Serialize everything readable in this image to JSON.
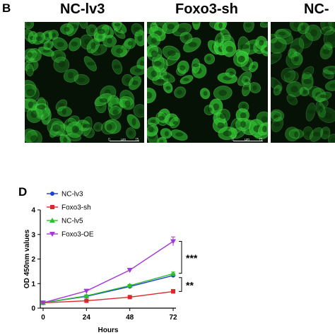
{
  "figure": {
    "panel_b_label": "B",
    "panel_d_label": "D",
    "micrographs": [
      {
        "label": "NC-lv3",
        "scale_zero": "0",
        "scale_unit": "µm",
        "scale_value": "75"
      },
      {
        "label": "Foxo3-sh",
        "scale_zero": "0",
        "scale_unit": "µm",
        "scale_value": "75"
      },
      {
        "label": "NC-",
        "scale_zero": "",
        "scale_unit": "",
        "scale_value": ""
      }
    ],
    "micrograph_color": "#2fbf2f",
    "significance": [
      "***",
      "**"
    ]
  },
  "chart_data": {
    "type": "line",
    "x": [
      0,
      24,
      48,
      72
    ],
    "xlabel": "Hours",
    "ylabel": "OD 450nm values",
    "xlim": [
      0,
      72
    ],
    "ylim": [
      0,
      4
    ],
    "yticks": [
      0,
      1,
      2,
      3,
      4
    ],
    "xticks": [
      0,
      24,
      48,
      72
    ],
    "legend_position": "top-left",
    "grid": false,
    "series": [
      {
        "name": "NC-lv3",
        "color": "#1f3fd6",
        "marker": "circle",
        "values": [
          0.22,
          0.48,
          0.88,
          1.33
        ],
        "errors": [
          0.03,
          0.04,
          0.06,
          0.07
        ]
      },
      {
        "name": "Foxo3-sh",
        "color": "#e02727",
        "marker": "square",
        "values": [
          0.22,
          0.3,
          0.45,
          0.68
        ],
        "errors": [
          0.02,
          0.03,
          0.04,
          0.08
        ]
      },
      {
        "name": "NC-lv5",
        "color": "#2dbf2d",
        "marker": "triangle-up",
        "values": [
          0.22,
          0.5,
          0.92,
          1.4
        ],
        "errors": [
          0.03,
          0.04,
          0.05,
          0.07
        ]
      },
      {
        "name": "Foxo3-OE",
        "color": "#a43ad6",
        "marker": "triangle-down",
        "values": [
          0.22,
          0.7,
          1.55,
          2.72
        ],
        "errors": [
          0.03,
          0.05,
          0.07,
          0.18
        ]
      }
    ]
  }
}
